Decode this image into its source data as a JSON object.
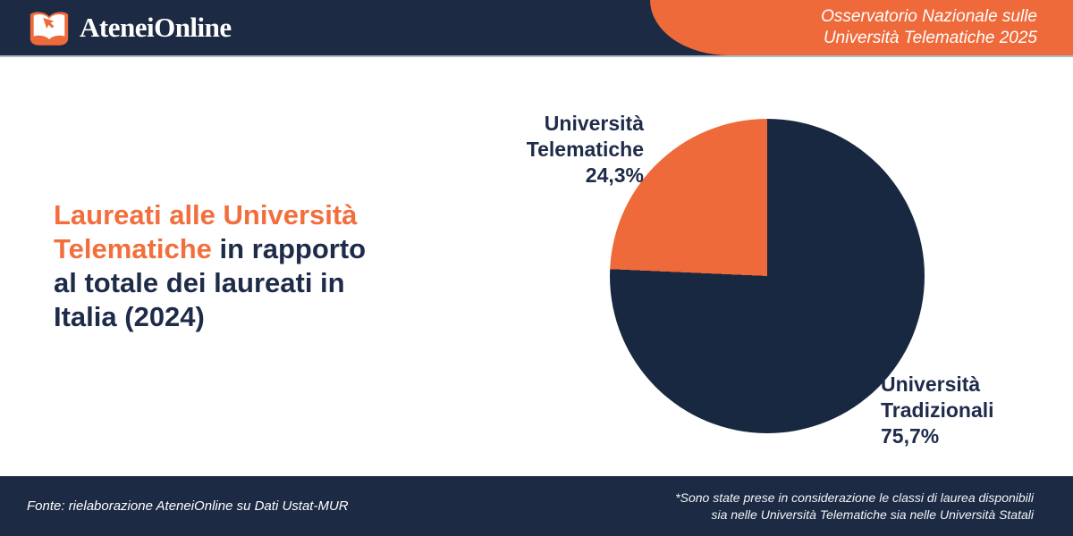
{
  "header": {
    "brand": "AteneiOnline",
    "badge_line1": "Osservatorio Nazionale sulle",
    "badge_line2": "Università Telematiche 2025"
  },
  "title": {
    "full_text": "Laureati alle Università Telematiche in rapporto al totale dei laureati in Italia (2024)",
    "lines": [
      [
        {
          "t": "Laureati alle Università",
          "accent": true
        }
      ],
      [
        {
          "t": "Telematiche ",
          "accent": true
        },
        {
          "t": "in rapporto",
          "accent": false
        }
      ],
      [
        {
          "t": "al totale dei laureati in",
          "accent": false
        }
      ],
      [
        {
          "t": "Italia (2024)",
          "accent": false
        }
      ]
    ]
  },
  "chart_data": {
    "type": "pie",
    "title": "Laureati alle Università Telematiche in rapporto al totale dei laureati in Italia (2024)",
    "labels": [
      "Università Telematiche",
      "Università Tradizionali"
    ],
    "values": [
      24.3,
      75.7
    ],
    "value_labels": [
      "24,3%",
      "75,7%"
    ],
    "colors": [
      "#ee6a3a",
      "#172840"
    ],
    "layout": "orange slice spans 87.5deg counterclockwise from 12 o'clock; labels placed beside their slices; no legend box"
  },
  "footer": {
    "source": "Fonte: rielaborazione AteneiOnline su Dati Ustat-MUR",
    "note_line1": "*Sono state prese in considerazione le classi di laurea disponibili",
    "note_line2": "sia nelle Università Telematiche sia nelle Università Statali"
  },
  "brand_colors": {
    "navy": "#1c2a44",
    "orange": "#ee6a3a",
    "divider_gray": "#aeb8c6"
  }
}
